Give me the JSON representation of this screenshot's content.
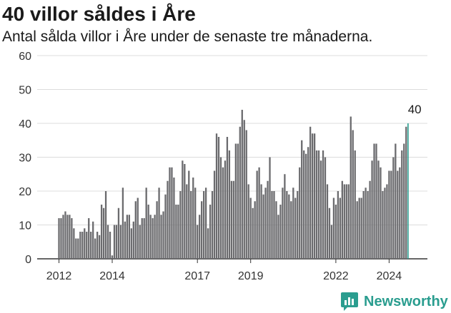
{
  "header": {
    "title": "40 villor såldes i Åre",
    "subtitle": "Antal sålda villor i Åre under de senaste tre månaderna."
  },
  "brand": {
    "name": "Newsworthy",
    "icon": "bar-chart-icon",
    "color": "#2a9d8f"
  },
  "chart_data": {
    "type": "bar",
    "title": "40 villor såldes i Åre",
    "subtitle": "Antal sålda villor i Åre under de senaste tre månaderna.",
    "xlabel": "",
    "ylabel": "",
    "ylim": [
      0,
      60
    ],
    "yticks": [
      0,
      10,
      20,
      30,
      40,
      50,
      60
    ],
    "xtick_labels": [
      "2012",
      "2014",
      "2017",
      "2019",
      "2022",
      "2024"
    ],
    "xtick_index": [
      0,
      25,
      65,
      90,
      130,
      155
    ],
    "grid": true,
    "bar_color": "#6b6b6e",
    "highlight_color": "#2a9d8f",
    "annotation": {
      "label": "40",
      "index": 167,
      "value": 40
    },
    "values": [
      12,
      12,
      13,
      14,
      13,
      13,
      12,
      9,
      6,
      6,
      8,
      8,
      9,
      8,
      12,
      8,
      11,
      6,
      8,
      7,
      16,
      15,
      20,
      10,
      8,
      1,
      10,
      10,
      15,
      10,
      21,
      11,
      13,
      13,
      9,
      11,
      17,
      18,
      10,
      12,
      12,
      21,
      16,
      13,
      12,
      13,
      17,
      21,
      13,
      14,
      19,
      23,
      27,
      27,
      24,
      16,
      16,
      20,
      29,
      28,
      22,
      26,
      20,
      24,
      21,
      10,
      13,
      17,
      20,
      21,
      9,
      16,
      20,
      26,
      37,
      36,
      30,
      27,
      29,
      36,
      32,
      23,
      23,
      34,
      34,
      39,
      44,
      41,
      38,
      22,
      18,
      15,
      17,
      26,
      27,
      22,
      19,
      21,
      23,
      30,
      20,
      20,
      17,
      13,
      16,
      21,
      25,
      20,
      19,
      17,
      21,
      18,
      20,
      27,
      35,
      32,
      31,
      33,
      39,
      37,
      37,
      32,
      32,
      29,
      32,
      30,
      22,
      15,
      10,
      18,
      16,
      20,
      18,
      23,
      22,
      22,
      22,
      42,
      38,
      32,
      17,
      18,
      18,
      20,
      21,
      20,
      23,
      29,
      34,
      34,
      29,
      27,
      20,
      21,
      22,
      26,
      26,
      30,
      34,
      26,
      27,
      32,
      34,
      39,
      40
    ]
  }
}
